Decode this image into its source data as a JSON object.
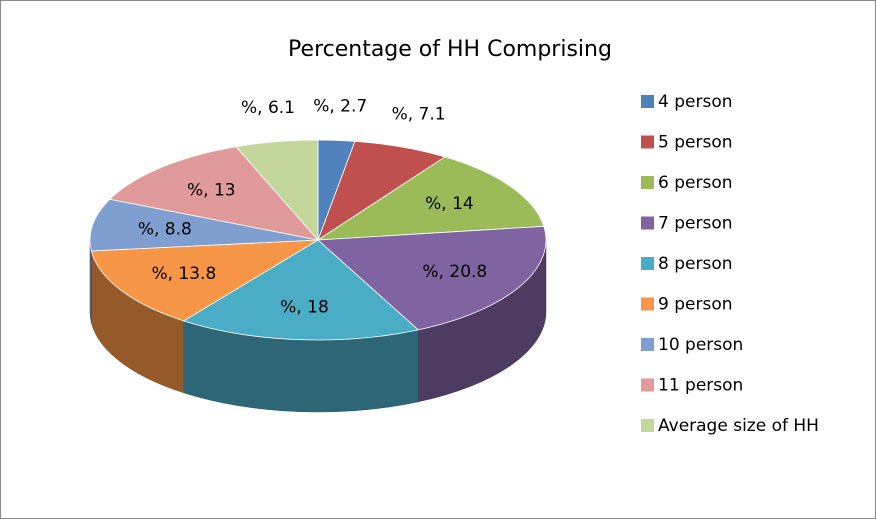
{
  "chart_data": {
    "type": "pie3d",
    "title": "Percentage of HH Comprising",
    "categories": [
      "4 person",
      "5 person",
      "6 person",
      "7 person",
      "8 person",
      "9 person",
      "10 person",
      "11 person",
      "Average size of HH"
    ],
    "values": [
      2.7,
      7.1,
      14,
      20.8,
      18,
      13.8,
      8.8,
      13,
      6.1
    ],
    "value_labels": [
      "%, 2.7",
      "%, 7.1",
      "%, 14",
      "%, 20.8",
      "%, 18",
      "%, 13.8",
      "%, 8.8",
      "%, 13",
      "%, 6.1"
    ],
    "colors": [
      "#4f81bd",
      "#c0504d",
      "#9bbb59",
      "#8064a2",
      "#4bacc6",
      "#f79646",
      "#7f9fd0",
      "#e09a99",
      "#c3d69b"
    ],
    "legend": "right"
  }
}
